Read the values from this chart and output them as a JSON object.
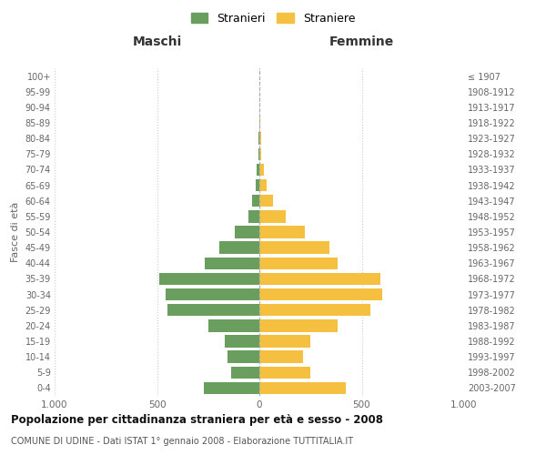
{
  "age_groups": [
    "0-4",
    "5-9",
    "10-14",
    "15-19",
    "20-24",
    "25-29",
    "30-34",
    "35-39",
    "40-44",
    "45-49",
    "50-54",
    "55-59",
    "60-64",
    "65-69",
    "70-74",
    "75-79",
    "80-84",
    "85-89",
    "90-94",
    "95-99",
    "100+"
  ],
  "birth_years": [
    "2003-2007",
    "1998-2002",
    "1993-1997",
    "1988-1992",
    "1983-1987",
    "1978-1982",
    "1973-1977",
    "1968-1972",
    "1963-1967",
    "1958-1962",
    "1953-1957",
    "1948-1952",
    "1943-1947",
    "1938-1942",
    "1933-1937",
    "1928-1932",
    "1923-1927",
    "1918-1922",
    "1913-1917",
    "1908-1912",
    "≤ 1907"
  ],
  "maschi": [
    270,
    140,
    155,
    170,
    250,
    450,
    460,
    490,
    265,
    195,
    120,
    55,
    35,
    20,
    15,
    5,
    3,
    2,
    0,
    0,
    0
  ],
  "femmine": [
    420,
    250,
    215,
    250,
    380,
    540,
    600,
    590,
    380,
    340,
    220,
    130,
    65,
    35,
    20,
    10,
    8,
    5,
    2,
    1,
    1
  ],
  "color_maschi": "#6a9e5e",
  "color_femmine": "#f5c040",
  "title": "Popolazione per cittadinanza straniera per età e sesso - 2008",
  "subtitle": "COMUNE DI UDINE - Dati ISTAT 1° gennaio 2008 - Elaborazione TUTTITALIA.IT",
  "header_left": "Maschi",
  "header_right": "Femmine",
  "ylabel_left": "Fasce di età",
  "legend_maschi": "Stranieri",
  "legend_femmine": "Straniere",
  "xlim": 1000,
  "background_color": "#ffffff",
  "grid_color": "#cccccc"
}
